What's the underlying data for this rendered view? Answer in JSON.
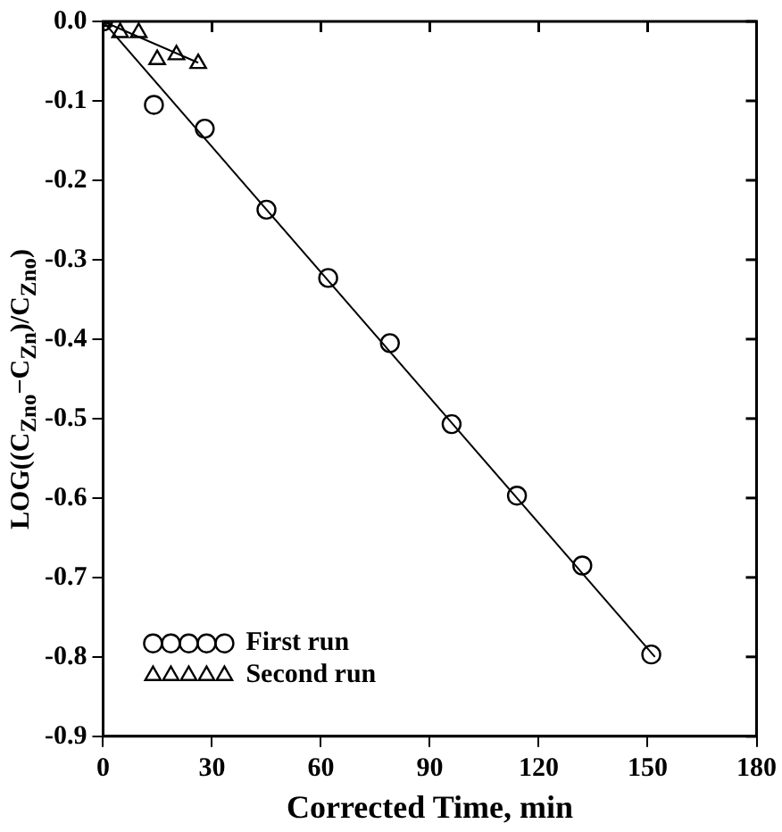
{
  "chart_data": {
    "type": "scatter",
    "xlabel": "Corrected Time, min",
    "ylabel": "LOG((C$_{Zno}$−C$_{Zn}$)/C$_{Zno}$)",
    "series": [
      {
        "name": "First run",
        "color": "#000000",
        "marker": "circle",
        "x": [
          0,
          14,
          28,
          45,
          62,
          79,
          96,
          114,
          132,
          151
        ],
        "values": [
          0,
          -0.105,
          -0.135,
          -0.237,
          -0.323,
          -0.405,
          -0.507,
          -0.597,
          -0.685,
          -0.797
        ]
      },
      {
        "name": "Second run",
        "color": "#000000",
        "marker": "triangle",
        "x": [
          0,
          4.7,
          9.8,
          14.9,
          20.2,
          26.2
        ],
        "values": [
          0,
          -0.014,
          -0.014,
          -0.048,
          -0.042,
          -0.053
        ]
      },
      {
        "type": "line",
        "color": "#000000",
        "x": [
          0,
          152
        ],
        "values": [
          0,
          -0.8
        ]
      },
      {
        "type": "line",
        "color": "#000000",
        "x": [
          0,
          26.2
        ],
        "values": [
          0,
          -0.052
        ]
      }
    ],
    "xlim": [
      0,
      180
    ],
    "xticks": [
      0,
      30,
      60,
      90,
      120,
      150,
      180
    ],
    "ylim": [
      -0.9,
      0
    ],
    "yticks": [
      {
        "value": 0,
        "label": "0.0"
      },
      -0.1,
      -0.2,
      -0.3,
      -0.4,
      -0.5,
      -0.6,
      -0.7,
      -0.8,
      -0.9
    ],
    "grid": false,
    "legend": "bottom left"
  }
}
